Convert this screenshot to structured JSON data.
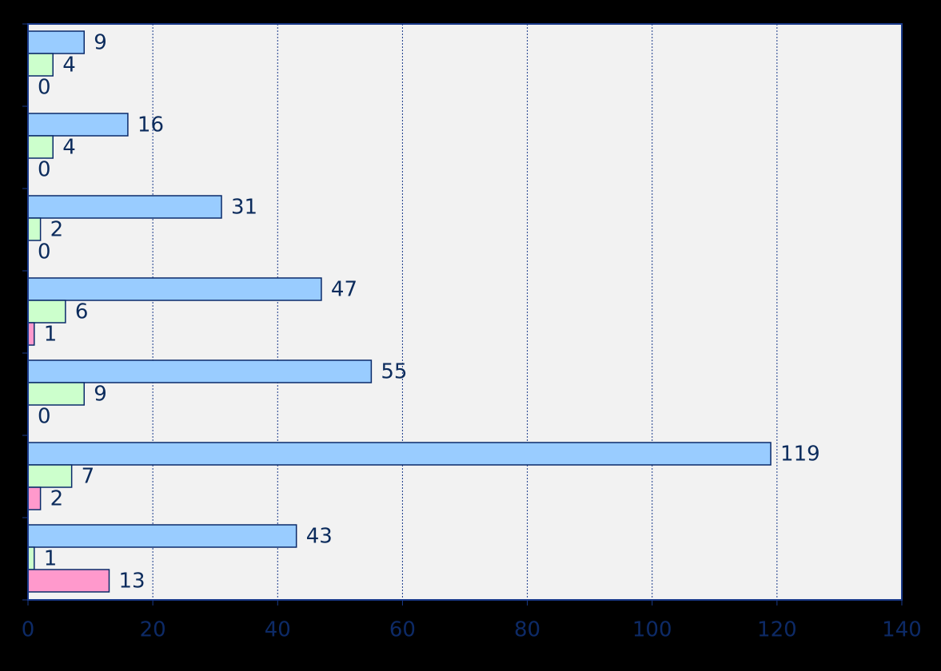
{
  "chart_data": {
    "type": "hbar",
    "categories": [
      null,
      null,
      null,
      null,
      null,
      null,
      null
    ],
    "series": [
      {
        "color": "#99ccff",
        "values": [
          9,
          16,
          31,
          47,
          55,
          119,
          43
        ]
      },
      {
        "color": "#ccffcc",
        "values": [
          4,
          4,
          2,
          6,
          9,
          7,
          1
        ]
      },
      {
        "color": "#ff99cc",
        "values": [
          0,
          0,
          0,
          1,
          0,
          2,
          13
        ]
      }
    ],
    "xlim": [
      0,
      140
    ],
    "xticks": [
      0,
      20,
      40,
      60,
      80,
      100,
      120,
      140
    ],
    "grid": true
  }
}
